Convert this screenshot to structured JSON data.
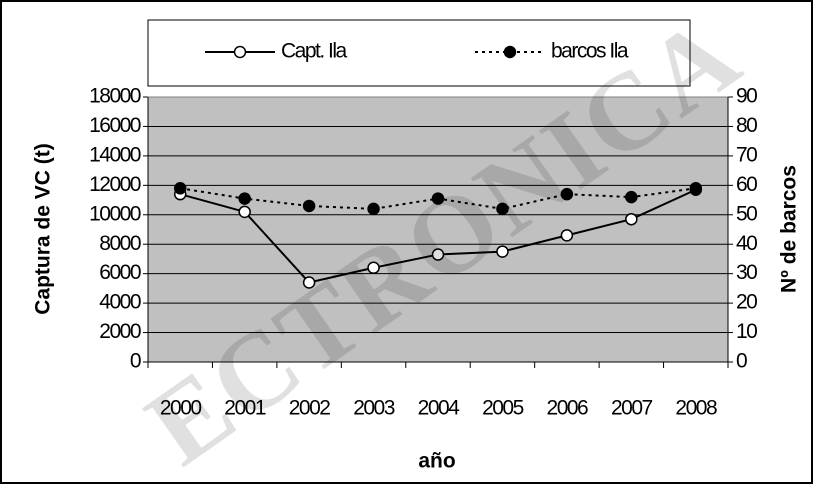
{
  "chart_data": {
    "type": "line",
    "x_label": "año",
    "y_label": "Captura de VC (t)",
    "y2_label": "Nº de barcos",
    "watermark": "ECTRONICA",
    "categories": [
      "2000",
      "2001",
      "2002",
      "2003",
      "2004",
      "2005",
      "2006",
      "2007",
      "2008"
    ],
    "series": [
      {
        "name": "Capt. Ila",
        "color": "#000000",
        "line_style": "solid",
        "marker_fill": "#ffffff",
        "values": [
          11400,
          10200,
          5400,
          6400,
          7300,
          7500,
          8600,
          9700,
          11700
        ]
      },
      {
        "name": "barcos Ila",
        "color": "#000000",
        "line_style": "dotted",
        "marker_fill": "#000000",
        "axis": "y2",
        "values": [
          59,
          55.5,
          53,
          52,
          55.5,
          52,
          57,
          56,
          59
        ]
      }
    ],
    "ylim": [
      0,
      18000
    ],
    "yticks": [
      0,
      2000,
      4000,
      6000,
      8000,
      10000,
      12000,
      14000,
      16000,
      18000
    ],
    "y2lim": [
      0,
      90
    ],
    "y2ticks": [
      0,
      10,
      20,
      30,
      40,
      50,
      60,
      70,
      80,
      90
    ],
    "grid": true,
    "plot_background": "#c0c0c0",
    "legend": "top"
  }
}
